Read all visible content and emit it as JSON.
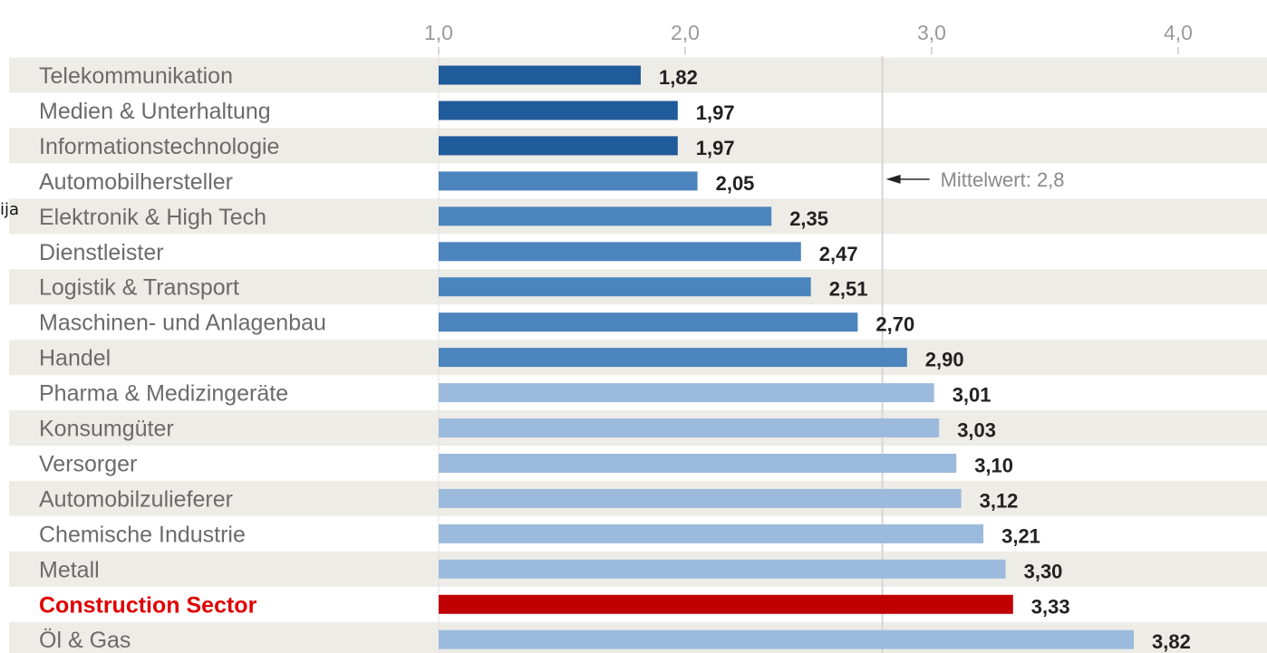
{
  "stray_text": "ija",
  "chart_data": {
    "type": "bar",
    "orientation": "horizontal",
    "categories": [
      "Telekommunikation",
      "Medien & Unterhaltung",
      "Informationstechnologie",
      "Automobilhersteller",
      "Elektronik & High Tech",
      "Dienstleister",
      "Logistik & Transport",
      "Maschinen- und Anlagenbau",
      "Handel",
      "Pharma & Medizingeräte",
      "Konsumgüter",
      "Versorger",
      "Automobilzulieferer",
      "Chemische Industrie",
      "Metall",
      "Construction Sector",
      "Öl & Gas"
    ],
    "values": [
      1.82,
      1.97,
      1.97,
      2.05,
      2.35,
      2.47,
      2.51,
      2.7,
      2.9,
      3.01,
      3.03,
      3.1,
      3.12,
      3.21,
      3.3,
      3.33,
      3.82
    ],
    "value_labels": [
      "1,82",
      "1,97",
      "1,97",
      "2,05",
      "2,35",
      "2,47",
      "2,51",
      "2,70",
      "2,90",
      "3,01",
      "3,03",
      "3,10",
      "3,12",
      "3,21",
      "3,30",
      "3,33",
      "3,82"
    ],
    "highlight_category": "Construction Sector",
    "xlim": [
      1.0,
      4.0
    ],
    "xticks": [
      1.0,
      2.0,
      3.0,
      4.0
    ],
    "xtick_labels": [
      "1,0",
      "2,0",
      "3,0",
      "4,0"
    ],
    "axis_position": "top",
    "reference_line": {
      "value": 2.8,
      "label": "Mittelwert: 2,8"
    },
    "row_striping": true,
    "colors": {
      "dark_blue": "#1f5a9a",
      "mid_blue": "#4c84bd",
      "light_blue": "#9cbbdc",
      "highlight": "#c00000",
      "stripe": "#eeece6",
      "reference_line": "#d6d6d6",
      "highlight_text": "#e00000"
    },
    "bar_color_groups": [
      "dark_blue",
      "dark_blue",
      "dark_blue",
      "mid_blue",
      "mid_blue",
      "mid_blue",
      "mid_blue",
      "mid_blue",
      "mid_blue",
      "light_blue",
      "light_blue",
      "light_blue",
      "light_blue",
      "light_blue",
      "light_blue",
      "highlight",
      "light_blue"
    ]
  }
}
